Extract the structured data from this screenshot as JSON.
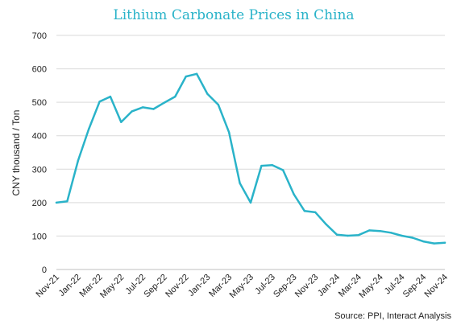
{
  "chart_data": {
    "type": "line",
    "title": "Lithium Carbonate Prices in China",
    "ylabel": "CNY thousand / Ton",
    "xlabel": "",
    "source": "Source: PPI, Interact Analysis",
    "ylim": [
      0,
      700
    ],
    "yticks": [
      0,
      100,
      200,
      300,
      400,
      500,
      600,
      700
    ],
    "grid": true,
    "legend": "none",
    "line_color": "#2ab3c9",
    "x": [
      "Nov-21",
      "Dec-21",
      "Jan-22",
      "Feb-22",
      "Mar-22",
      "Apr-22",
      "May-22",
      "Jun-22",
      "Jul-22",
      "Aug-22",
      "Sep-22",
      "Oct-22",
      "Nov-22",
      "Dec-22",
      "Jan-23",
      "Feb-23",
      "Mar-23",
      "Apr-23",
      "May-23",
      "Jun-23",
      "Jul-23",
      "Aug-23",
      "Sep-23",
      "Oct-23",
      "Nov-23",
      "Dec-23",
      "Jan-24",
      "Feb-24",
      "Mar-24",
      "Apr-24",
      "May-24",
      "Jun-24",
      "Jul-24",
      "Aug-24",
      "Sep-24",
      "Oct-24",
      "Nov-24"
    ],
    "xtick_labels": [
      "Nov-21",
      "Jan-22",
      "Mar-22",
      "May-22",
      "Jul-22",
      "Sep-22",
      "Nov-22",
      "Jan-23",
      "Mar-23",
      "May-23",
      "Jul-23",
      "Sep-23",
      "Nov-23",
      "Jan-24",
      "Mar-24",
      "May-24",
      "Jul-24",
      "Sep-24",
      "Nov-24"
    ],
    "series": [
      {
        "values": [
          200,
          204,
          325,
          420,
          502,
          517,
          441,
          473,
          485,
          480,
          499,
          517,
          577,
          585,
          525,
          493,
          410,
          258,
          200,
          310,
          312,
          297,
          225,
          175,
          171,
          135,
          104,
          101,
          103,
          117,
          115,
          110,
          101,
          95,
          84,
          78,
          80
        ]
      }
    ]
  }
}
